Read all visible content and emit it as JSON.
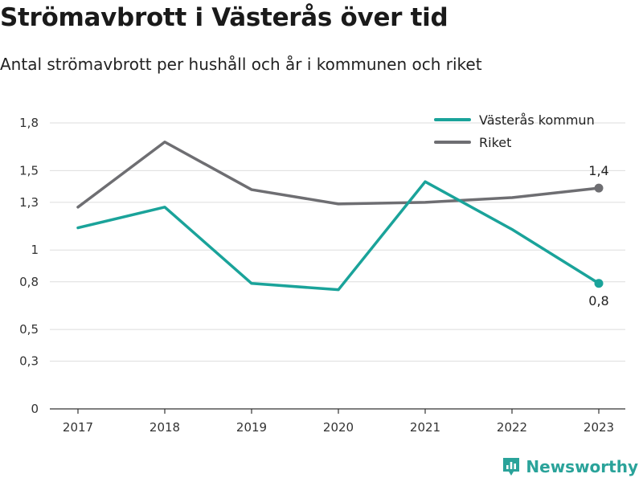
{
  "title": "Strömavbrott i Västerås över tid",
  "subtitle": "Antal strömavbrott per hushåll och år i kommunen och riket",
  "brand": {
    "name": "Newsworthy",
    "icon": "newsworthy-logo-icon",
    "color": "#2aa39a"
  },
  "chart_data": {
    "type": "line",
    "x": [
      "2017",
      "2018",
      "2019",
      "2020",
      "2021",
      "2022",
      "2023"
    ],
    "ylim": [
      0,
      1.8
    ],
    "yticks": [
      {
        "value": 0,
        "label": "0"
      },
      {
        "value": 0.3,
        "label": "0,3"
      },
      {
        "value": 0.5,
        "label": "0,5"
      },
      {
        "value": 0.8,
        "label": "0,8"
      },
      {
        "value": 1.0,
        "label": "1"
      },
      {
        "value": 1.3,
        "label": "1,3"
      },
      {
        "value": 1.5,
        "label": "1,5"
      },
      {
        "value": 1.8,
        "label": "1,8"
      }
    ],
    "grid": true,
    "legend_position": "top-right",
    "series": [
      {
        "name": "Västerås kommun",
        "color": "#1aa39a",
        "values": [
          1.14,
          1.27,
          0.79,
          0.75,
          1.43,
          1.13,
          0.79
        ],
        "end_label": "0,8"
      },
      {
        "name": "Riket",
        "color": "#6e6e72",
        "values": [
          1.27,
          1.68,
          1.38,
          1.29,
          1.3,
          1.33,
          1.39
        ],
        "end_label": "1,4"
      }
    ]
  }
}
